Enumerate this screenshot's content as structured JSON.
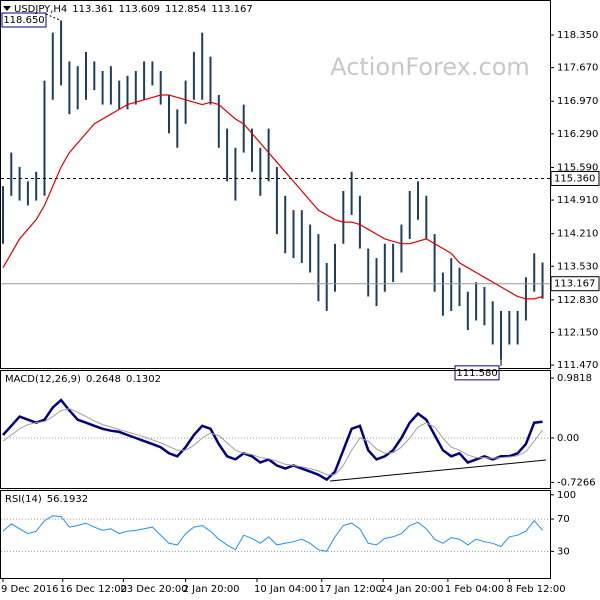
{
  "chart_data": [
    {
      "type": "range",
      "title": "USDJPY,H4",
      "readout": [
        113.361,
        113.609,
        112.854,
        113.167
      ],
      "watermark": "ActionForex.com",
      "color": "#1f3d5c",
      "high": [
        115.2,
        115.9,
        115.6,
        115.3,
        115.5,
        117.4,
        118.4,
        118.65,
        117.8,
        117.7,
        118.0,
        117.8,
        117.6,
        117.7,
        117.4,
        117.5,
        117.6,
        117.8,
        117.8,
        117.6,
        117.1,
        116.8,
        117.4,
        118.0,
        118.4,
        117.9,
        117.1,
        116.4,
        116.0,
        116.9,
        116.4,
        116.0,
        116.4,
        115.6,
        115.0,
        114.7,
        114.7,
        114.4,
        114.2,
        113.6,
        114.0,
        115.1,
        115.5,
        115.0,
        113.9,
        113.7,
        114.0,
        114.0,
        114.4,
        115.1,
        115.3,
        115.0,
        114.2,
        113.4,
        113.7,
        113.5,
        113.0,
        113.2,
        113.1,
        112.8,
        112.6,
        112.6,
        112.6,
        113.3,
        113.8,
        113.609
      ],
      "low": [
        114.0,
        115.0,
        114.9,
        114.8,
        114.9,
        115.0,
        117.0,
        117.3,
        116.7,
        116.8,
        117.0,
        117.2,
        116.9,
        116.9,
        116.8,
        116.8,
        116.9,
        117.0,
        117.3,
        116.9,
        116.3,
        116.0,
        116.5,
        117.0,
        117.0,
        116.9,
        116.0,
        115.3,
        114.9,
        115.9,
        115.5,
        115.0,
        115.3,
        114.2,
        113.8,
        113.7,
        113.6,
        113.4,
        112.8,
        112.6,
        113.0,
        114.0,
        114.6,
        113.9,
        112.9,
        112.7,
        113.0,
        113.2,
        113.4,
        114.1,
        114.5,
        114.1,
        113.0,
        112.5,
        112.6,
        112.7,
        112.2,
        112.4,
        112.3,
        111.9,
        111.58,
        111.9,
        111.9,
        112.4,
        113.0,
        112.854
      ],
      "series": [
        {
          "color": "#e00000",
          "width": 1.2,
          "values": [
            113.5,
            113.8,
            114.1,
            114.3,
            114.5,
            114.8,
            115.2,
            115.6,
            115.9,
            116.1,
            116.3,
            116.5,
            116.6,
            116.7,
            116.8,
            116.9,
            116.95,
            117.0,
            117.05,
            117.1,
            117.1,
            117.05,
            117.0,
            116.95,
            116.9,
            116.95,
            116.9,
            116.75,
            116.6,
            116.5,
            116.3,
            116.1,
            115.9,
            115.7,
            115.5,
            115.3,
            115.1,
            114.9,
            114.7,
            114.6,
            114.5,
            114.45,
            114.45,
            114.4,
            114.3,
            114.2,
            114.1,
            114.05,
            114.0,
            114.0,
            114.05,
            114.1,
            114.0,
            113.9,
            113.8,
            113.6,
            113.5,
            113.4,
            113.3,
            113.2,
            113.1,
            113.0,
            112.9,
            112.85,
            112.85,
            112.9
          ]
        }
      ],
      "price_lines": [
        {
          "value": 115.36,
          "label": "115.360",
          "style": "dashed"
        },
        {
          "value": 113.167,
          "style": "solid"
        }
      ],
      "extremes": [
        {
          "value": 118.65,
          "label": "118.650"
        },
        {
          "value": 111.58,
          "label": "111.580"
        }
      ],
      "xlim": [
        -0.36,
        65.9
      ],
      "ylim": [
        111.41,
        119.08
      ],
      "yticks": [
        {
          "value": 118.35,
          "label": "118.350"
        },
        {
          "value": 117.67,
          "label": "117.670"
        },
        {
          "value": 116.97,
          "label": "116.970"
        },
        {
          "value": 116.29,
          "label": "116.290"
        },
        {
          "value": 115.59,
          "label": "115.590"
        },
        {
          "value": 114.91,
          "label": "114.910"
        },
        {
          "value": 114.21,
          "label": "114.210"
        },
        {
          "value": 113.53,
          "label": "113.530"
        },
        {
          "value": 112.83,
          "label": "112.830"
        },
        {
          "value": 112.15,
          "label": "112.150"
        },
        {
          "value": 111.47,
          "label": "111.470"
        }
      ]
    },
    {
      "type": "line",
      "title": "MACD(12,26,9)",
      "readout": [
        0.2648,
        0.1302
      ],
      "grid": true,
      "xlim": [
        -0.36,
        65.9
      ],
      "ylim": [
        -0.818,
        1.113
      ],
      "yticks": [
        0.9818,
        {
          "value": 0,
          "label": "0.00"
        },
        -0.7266
      ],
      "series": [
        {
          "color": "#000080",
          "width": 2.5,
          "values": [
            0.05,
            0.2,
            0.35,
            0.3,
            0.25,
            0.3,
            0.5,
            0.62,
            0.45,
            0.3,
            0.25,
            0.2,
            0.15,
            0.12,
            0.1,
            0.05,
            0.0,
            -0.05,
            -0.1,
            -0.15,
            -0.25,
            -0.3,
            -0.15,
            0.05,
            0.2,
            0.15,
            -0.1,
            -0.3,
            -0.35,
            -0.25,
            -0.3,
            -0.4,
            -0.35,
            -0.45,
            -0.5,
            -0.45,
            -0.5,
            -0.55,
            -0.6,
            -0.68,
            -0.55,
            -0.2,
            0.15,
            0.2,
            -0.2,
            -0.35,
            -0.3,
            -0.2,
            0.0,
            0.25,
            0.4,
            0.3,
            0.05,
            -0.2,
            -0.3,
            -0.25,
            -0.4,
            -0.35,
            -0.3,
            -0.35,
            -0.3,
            -0.3,
            -0.25,
            -0.1,
            0.25,
            0.2648
          ]
        },
        {
          "color": "#a0a0a0",
          "width": 1,
          "values": [
            -0.05,
            0.05,
            0.15,
            0.22,
            0.25,
            0.27,
            0.35,
            0.45,
            0.48,
            0.42,
            0.35,
            0.28,
            0.22,
            0.18,
            0.14,
            0.1,
            0.06,
            0.02,
            -0.03,
            -0.08,
            -0.14,
            -0.2,
            -0.2,
            -0.12,
            0.0,
            0.08,
            0.04,
            -0.08,
            -0.2,
            -0.25,
            -0.27,
            -0.32,
            -0.34,
            -0.38,
            -0.43,
            -0.45,
            -0.47,
            -0.5,
            -0.54,
            -0.6,
            -0.6,
            -0.45,
            -0.2,
            0.0,
            -0.05,
            -0.18,
            -0.25,
            -0.24,
            -0.15,
            0.0,
            0.18,
            0.25,
            0.18,
            0.0,
            -0.15,
            -0.2,
            -0.28,
            -0.32,
            -0.32,
            -0.33,
            -0.32,
            -0.31,
            -0.29,
            -0.22,
            -0.05,
            0.1302
          ]
        }
      ]
    },
    {
      "type": "line",
      "title": "RSI(14)",
      "readout": [
        56.1932
      ],
      "grid": true,
      "xlim": [
        -0.36,
        65.9
      ],
      "ylim": [
        -3,
        106
      ],
      "yticks": [
        100,
        70,
        30
      ],
      "series": [
        {
          "color": "#1e90ff",
          "width": 1,
          "values": [
            55,
            64,
            58,
            52,
            55,
            68,
            74,
            73,
            60,
            62,
            65,
            60,
            56,
            58,
            52,
            55,
            56,
            58,
            60,
            50,
            40,
            38,
            52,
            60,
            62,
            55,
            45,
            38,
            32,
            50,
            46,
            40,
            48,
            38,
            40,
            42,
            45,
            40,
            32,
            30,
            48,
            62,
            65,
            58,
            40,
            38,
            46,
            48,
            52,
            62,
            66,
            58,
            45,
            40,
            47,
            45,
            38,
            45,
            42,
            40,
            36,
            48,
            50,
            55,
            68,
            56.1932
          ]
        }
      ],
      "xticks": [
        {
          "value": 0,
          "label": "9 Dec 2016"
        },
        {
          "value": 7.2,
          "label": "16 Dec 12:00"
        },
        {
          "value": 14.5,
          "label": "23 Dec 20:00"
        },
        {
          "value": 22,
          "label": "2 Jan 20:00"
        },
        {
          "value": 30.6,
          "label": "10 Jan 04:00"
        },
        {
          "value": 38.4,
          "label": "17 Jan 12:00"
        },
        {
          "value": 45.8,
          "label": "24 Jan 20:00"
        },
        {
          "value": 53.6,
          "label": "1 Feb 04:00"
        },
        {
          "value": 61,
          "label": "8 Feb 12:00"
        }
      ]
    }
  ]
}
